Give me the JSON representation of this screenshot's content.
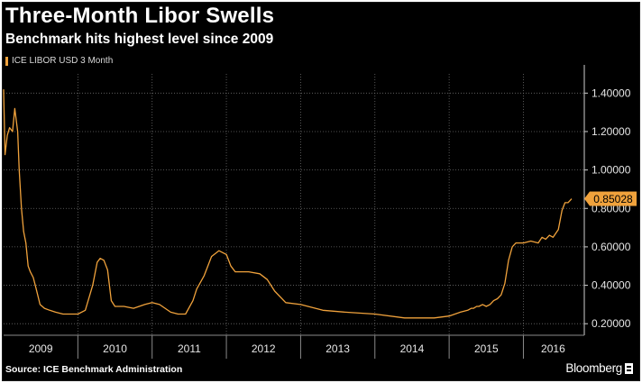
{
  "colors": {
    "background": "#000000",
    "line": "#f0a23c",
    "text": "#ffffff",
    "grid": "#6b6b6b"
  },
  "chart_data": {
    "type": "line",
    "title": "Three-Month Libor Swells",
    "subtitle": "Benchmark hits highest level since 2009",
    "source": "Source: ICE Benchmark Administration",
    "brand": "Bloomberg",
    "brand_icon": "bloomberg-logo-icon",
    "last_value_label": "0.85028",
    "last_value": 0.85028,
    "ylim": [
      0.14,
      1.5
    ],
    "yticks": [
      0.2,
      0.4,
      0.6,
      0.8,
      1.0,
      1.2,
      1.4
    ],
    "ytick_labels": [
      "0.20000",
      "0.40000",
      "0.60000",
      "0.80000",
      "1.00000",
      "1.20000",
      "1.40000"
    ],
    "xlim": [
      2009.0,
      2016.82
    ],
    "year_boundaries": [
      2010,
      2011,
      2012,
      2013,
      2014,
      2015,
      2016
    ],
    "xtick_labels": [
      {
        "label": "2009",
        "x": 2009.5
      },
      {
        "label": "2010",
        "x": 2010.5
      },
      {
        "label": "2011",
        "x": 2011.5
      },
      {
        "label": "2012",
        "x": 2012.5
      },
      {
        "label": "2013",
        "x": 2013.5
      },
      {
        "label": "2014",
        "x": 2014.5
      },
      {
        "label": "2015",
        "x": 2015.5
      },
      {
        "label": "2016",
        "x": 2016.4
      }
    ],
    "grid": true,
    "series": [
      {
        "name": "ICE LIBOR USD 3 Month",
        "x": [
          2009.0,
          2009.02,
          2009.05,
          2009.08,
          2009.12,
          2009.15,
          2009.19,
          2009.21,
          2009.24,
          2009.27,
          2009.3,
          2009.33,
          2009.36,
          2009.4,
          2009.44,
          2009.49,
          2009.55,
          2009.62,
          2009.7,
          2009.8,
          2009.9,
          2010.0,
          2010.1,
          2010.2,
          2010.26,
          2010.3,
          2010.35,
          2010.4,
          2010.45,
          2010.5,
          2010.55,
          2010.62,
          2010.75,
          2010.9,
          2011.0,
          2011.1,
          2011.25,
          2011.35,
          2011.45,
          2011.55,
          2011.6,
          2011.7,
          2011.8,
          2011.9,
          2012.0,
          2012.06,
          2012.12,
          2012.2,
          2012.3,
          2012.45,
          2012.55,
          2012.65,
          2012.8,
          2013.0,
          2013.3,
          2013.6,
          2014.0,
          2014.4,
          2014.6,
          2014.8,
          2015.0,
          2015.15,
          2015.25,
          2015.3,
          2015.33,
          2015.37,
          2015.4,
          2015.45,
          2015.5,
          2015.55,
          2015.6,
          2015.65,
          2015.7,
          2015.75,
          2015.8,
          2015.85,
          2015.9,
          2016.0,
          2016.1,
          2016.2,
          2016.25,
          2016.3,
          2016.35,
          2016.4,
          2016.47,
          2016.52,
          2016.56,
          2016.6,
          2016.65
        ],
        "values": [
          1.42,
          1.08,
          1.18,
          1.22,
          1.2,
          1.32,
          1.2,
          1.0,
          0.8,
          0.68,
          0.62,
          0.5,
          0.47,
          0.44,
          0.38,
          0.3,
          0.28,
          0.27,
          0.26,
          0.25,
          0.25,
          0.25,
          0.27,
          0.4,
          0.52,
          0.54,
          0.53,
          0.48,
          0.32,
          0.29,
          0.29,
          0.29,
          0.28,
          0.3,
          0.31,
          0.3,
          0.26,
          0.25,
          0.25,
          0.32,
          0.38,
          0.45,
          0.55,
          0.58,
          0.56,
          0.5,
          0.47,
          0.47,
          0.47,
          0.46,
          0.43,
          0.37,
          0.31,
          0.3,
          0.27,
          0.26,
          0.25,
          0.23,
          0.23,
          0.23,
          0.24,
          0.26,
          0.27,
          0.28,
          0.28,
          0.29,
          0.29,
          0.3,
          0.29,
          0.3,
          0.32,
          0.33,
          0.35,
          0.41,
          0.53,
          0.6,
          0.62,
          0.62,
          0.63,
          0.62,
          0.65,
          0.64,
          0.66,
          0.65,
          0.69,
          0.79,
          0.83,
          0.83,
          0.85
        ]
      }
    ]
  }
}
